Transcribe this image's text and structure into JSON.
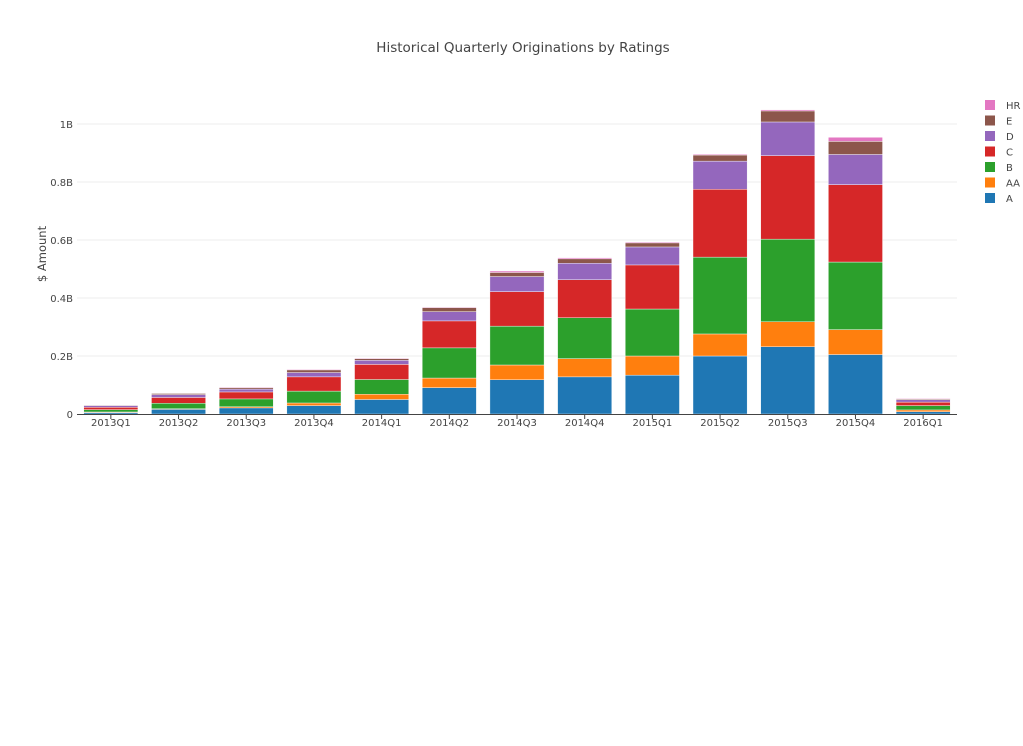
{
  "chart_data": {
    "type": "bar",
    "barmode": "stack",
    "title": "Historical Quarterly Originations by Ratings",
    "xlabel": "",
    "ylabel": "$ Amount",
    "ylim": [
      0,
      1.1
    ],
    "yticks": [
      0,
      0.2,
      0.4,
      0.6,
      0.8,
      1.0
    ],
    "ytick_labels": [
      "0",
      "0.2B",
      "0.4B",
      "0.6B",
      "0.8B",
      "1B"
    ],
    "grid": true,
    "legend_placement": "right",
    "categories": [
      "2013Q1",
      "2013Q2",
      "2013Q3",
      "2013Q4",
      "2014Q1",
      "2014Q2",
      "2014Q3",
      "2014Q4",
      "2015Q1",
      "2015Q2",
      "2015Q3",
      "2015Q4",
      "2016Q1"
    ],
    "series": [
      {
        "name": "A",
        "color": "#1f77b4",
        "values": [
          0.005,
          0.016,
          0.021,
          0.029,
          0.05,
          0.091,
          0.118,
          0.128,
          0.134,
          0.2,
          0.232,
          0.205,
          0.008
        ]
      },
      {
        "name": "AA",
        "color": "#ff7f0e",
        "values": [
          0.002,
          0.002,
          0.004,
          0.009,
          0.018,
          0.033,
          0.051,
          0.063,
          0.066,
          0.076,
          0.086,
          0.086,
          0.006
        ]
      },
      {
        "name": "B",
        "color": "#2ca02c",
        "values": [
          0.008,
          0.019,
          0.027,
          0.041,
          0.051,
          0.104,
          0.134,
          0.141,
          0.162,
          0.265,
          0.285,
          0.233,
          0.015
        ]
      },
      {
        "name": "C",
        "color": "#d62728",
        "values": [
          0.008,
          0.02,
          0.024,
          0.049,
          0.052,
          0.093,
          0.119,
          0.131,
          0.152,
          0.234,
          0.288,
          0.267,
          0.012
        ]
      },
      {
        "name": "D",
        "color": "#9467bd",
        "values": [
          0.006,
          0.01,
          0.01,
          0.015,
          0.014,
          0.032,
          0.052,
          0.057,
          0.062,
          0.097,
          0.116,
          0.104,
          0.008
        ]
      },
      {
        "name": "E",
        "color": "#8c564b",
        "values": [
          0.002,
          0.004,
          0.005,
          0.009,
          0.006,
          0.014,
          0.014,
          0.015,
          0.014,
          0.021,
          0.038,
          0.045,
          0.003
        ]
      },
      {
        "name": "HR",
        "color": "#e377c2",
        "values": [
          0.001,
          0.001,
          0.002,
          0.002,
          0.002,
          0.002,
          0.005,
          0.004,
          0.003,
          0.003,
          0.004,
          0.014,
          0.002
        ]
      }
    ]
  }
}
